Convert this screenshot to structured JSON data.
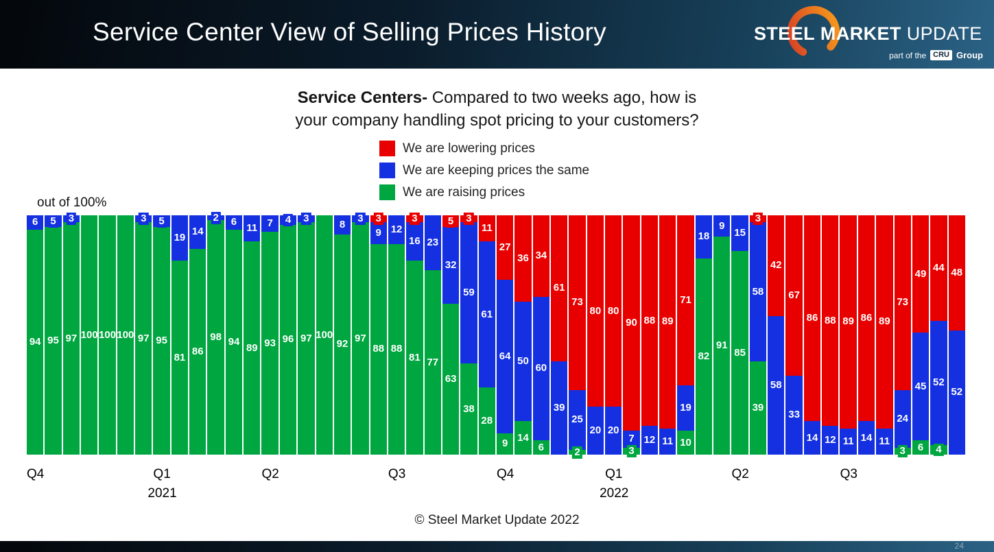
{
  "banner": {
    "title": "Service Center View of Selling Prices History",
    "logo": {
      "steel": "STEEL",
      "market": "MARKET",
      "update": "UPDATE",
      "tagline_pre": "part of the",
      "tagline_cru": "CRU",
      "tagline_post": "Group"
    }
  },
  "footer": {
    "copyright": "© Steel Market Update 2022",
    "page_number": "24"
  },
  "chart_data": {
    "type": "bar",
    "stacked": true,
    "percent_stacked": true,
    "title_bold": "Service Centers-",
    "title_rest": " Compared to two weeks ago, how is",
    "title_line2": "your company handling spot pricing to your customers?",
    "axis_note": "out of 100%",
    "ylim": [
      0,
      100
    ],
    "legend_position": "top-center",
    "series": [
      {
        "key": "raising",
        "label": "We are raising prices",
        "color": "#00a63f"
      },
      {
        "key": "keeping",
        "label": "We are keeping prices the same",
        "color": "#1430e0"
      },
      {
        "key": "lowering",
        "label": "We are lowering prices",
        "color": "#e80000"
      }
    ],
    "legend_order": [
      "lowering",
      "keeping",
      "raising"
    ],
    "bar_value_order": [
      "raising",
      "keeping",
      "lowering"
    ],
    "stack_order_bottom_to_top": [
      "raising",
      "keeping",
      "lowering"
    ],
    "bars": [
      [
        94,
        6,
        0
      ],
      [
        95,
        5,
        0
      ],
      [
        97,
        3,
        0
      ],
      [
        100,
        0,
        0
      ],
      [
        100,
        0,
        0
      ],
      [
        100,
        0,
        0
      ],
      [
        97,
        3,
        0
      ],
      [
        95,
        5,
        0
      ],
      [
        81,
        19,
        0
      ],
      [
        86,
        14,
        0
      ],
      [
        98,
        2,
        0
      ],
      [
        94,
        6,
        0
      ],
      [
        89,
        11,
        0
      ],
      [
        93,
        7,
        0
      ],
      [
        96,
        4,
        0
      ],
      [
        97,
        3,
        0
      ],
      [
        100,
        0,
        0
      ],
      [
        92,
        8,
        0
      ],
      [
        97,
        3,
        0
      ],
      [
        88,
        9,
        3
      ],
      [
        88,
        12,
        0
      ],
      [
        81,
        16,
        3
      ],
      [
        77,
        23,
        0
      ],
      [
        63,
        32,
        5
      ],
      [
        38,
        59,
        3
      ],
      [
        28,
        61,
        11
      ],
      [
        9,
        64,
        27
      ],
      [
        14,
        50,
        36
      ],
      [
        6,
        60,
        34
      ],
      [
        0,
        39,
        61
      ],
      [
        2,
        25,
        73
      ],
      [
        0,
        20,
        80
      ],
      [
        0,
        20,
        80
      ],
      [
        3,
        7,
        90
      ],
      [
        0,
        12,
        88
      ],
      [
        0,
        11,
        89
      ],
      [
        10,
        19,
        71
      ],
      [
        82,
        18,
        0
      ],
      [
        91,
        9,
        0
      ],
      [
        85,
        15,
        0
      ],
      [
        39,
        58,
        3
      ],
      [
        0,
        58,
        42
      ],
      [
        0,
        33,
        67
      ],
      [
        0,
        14,
        86
      ],
      [
        0,
        12,
        88
      ],
      [
        0,
        11,
        89
      ],
      [
        0,
        14,
        86
      ],
      [
        0,
        11,
        89
      ],
      [
        3,
        24,
        73
      ],
      [
        6,
        45,
        49
      ],
      [
        4,
        52,
        44
      ],
      [
        0,
        52,
        48
      ]
    ],
    "x_ticks": [
      {
        "bar_index": 0,
        "label": "Q4"
      },
      {
        "bar_index": 7,
        "label": "Q1",
        "year": "2021"
      },
      {
        "bar_index": 13,
        "label": "Q2"
      },
      {
        "bar_index": 20,
        "label": "Q3"
      },
      {
        "bar_index": 26,
        "label": "Q4"
      },
      {
        "bar_index": 32,
        "label": "Q1",
        "year": "2022"
      },
      {
        "bar_index": 39,
        "label": "Q2"
      },
      {
        "bar_index": 45,
        "label": "Q3"
      }
    ]
  }
}
